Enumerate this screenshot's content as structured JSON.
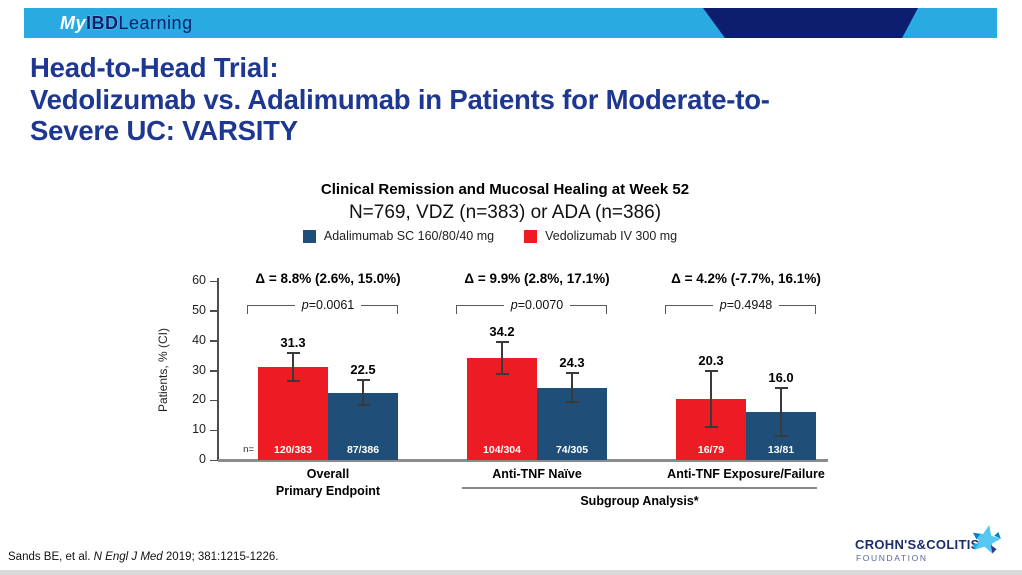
{
  "banner": {
    "logo_my": "My",
    "logo_ibd": "IBD",
    "logo_learning": "Learning"
  },
  "title": {
    "line1": "Head-to-Head Trial:",
    "line2": "Vedolizumab vs. Adalimumab in Patients for Moderate-to-",
    "line3": "Severe UC: VARSITY"
  },
  "chart_data": {
    "type": "bar",
    "title": "Clinical Remission and Mucosal Healing at Week 52",
    "subtitle": "N=769, VDZ (n=383) or ADA (n=386)",
    "ylabel": "Patients, % (CI)",
    "ylim": [
      0,
      60
    ],
    "yticks": [
      0,
      10,
      20,
      30,
      40,
      50,
      60
    ],
    "grid": false,
    "legend_position": "top",
    "legend": [
      {
        "label": "Adalimumab SC 160/80/40 mg",
        "color": "#1F4E79"
      },
      {
        "label": "Vedolizumab IV 300 mg",
        "color": "#ED1C24"
      }
    ],
    "n_prefix": "n=",
    "groups": [
      {
        "name_lines": [
          "Overall",
          "Primary Endpoint"
        ],
        "delta": "Δ = 8.8% (2.6%, 15.0%)",
        "p_value": "p=0.0061",
        "bars": [
          {
            "series": "Vedolizumab IV 300 mg",
            "value": 31.3,
            "n": "120/383",
            "ci_low": 26.6,
            "ci_high": 36.0
          },
          {
            "series": "Adalimumab SC 160/80/40 mg",
            "value": 22.5,
            "n": "87/386",
            "ci_low": 18.3,
            "ci_high": 26.9
          }
        ]
      },
      {
        "name_lines": [
          "Anti-TNF Naïve"
        ],
        "delta": "Δ = 9.9% (2.8%, 17.1%)",
        "p_value": "p=0.0070",
        "bars": [
          {
            "series": "Vedolizumab IV 300 mg",
            "value": 34.2,
            "n": "104/304",
            "ci_low": 28.7,
            "ci_high": 39.4
          },
          {
            "series": "Adalimumab SC 160/80/40 mg",
            "value": 24.3,
            "n": "74/305",
            "ci_low": 19.4,
            "ci_high": 29.2
          }
        ]
      },
      {
        "name_lines": [
          "Anti-TNF Exposure/Failure"
        ],
        "delta": "Δ = 4.2% (-7.7%, 16.1%)",
        "p_value": "p=0.4948",
        "bars": [
          {
            "series": "Vedolizumab IV 300 mg",
            "value": 20.3,
            "n": "16/79",
            "ci_low": 11.0,
            "ci_high": 29.8
          },
          {
            "series": "Adalimumab SC 160/80/40 mg",
            "value": 16.0,
            "n": "13/81",
            "ci_low": 8.2,
            "ci_high": 24.2
          }
        ]
      }
    ],
    "subgroup_label": "Subgroup Analysis*"
  },
  "footer": {
    "citation_prefix": "Sands BE, et al. ",
    "citation_journal": "N Engl J Med",
    "citation_suffix": " 2019; 381:1215-1226."
  },
  "cc_logo": {
    "line1": "CROHN'S&COLITIS",
    "line2": "FOUNDATION"
  },
  "colors": {
    "banner_blue": "#29ABE2",
    "navy": "#0D1E6E",
    "title_blue": "#1E3791",
    "bar_red": "#ED1C24",
    "bar_blue": "#1F4E79"
  }
}
